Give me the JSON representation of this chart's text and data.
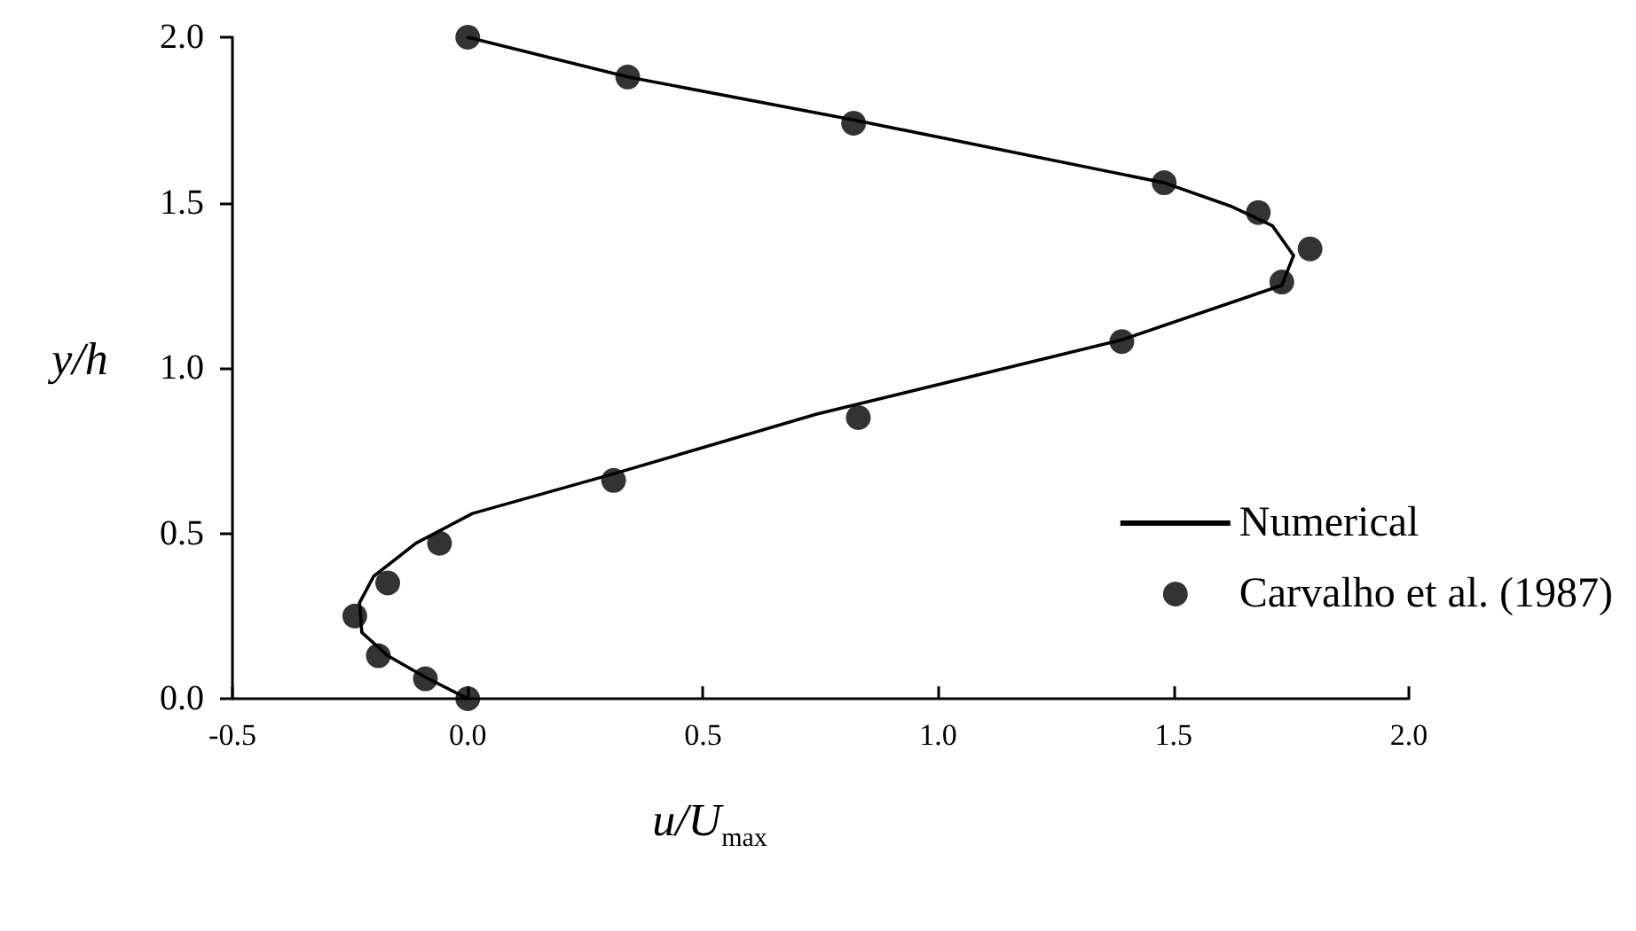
{
  "chart_data": {
    "type": "scatter",
    "xlabel": "u/U$_{max}$",
    "ylabel": "y/h",
    "xlim": [
      -0.5,
      2.0
    ],
    "xticks": [
      {
        "value": -0.5,
        "label": "-0.5"
      },
      {
        "value": 0,
        "label": "0.0"
      },
      {
        "value": 0.5,
        "label": "0.5"
      },
      {
        "value": 1,
        "label": "1.0"
      },
      {
        "value": 1.5,
        "label": "1.5"
      },
      {
        "value": 2,
        "label": "2.0"
      }
    ],
    "ylim": [
      0,
      2.0
    ],
    "yticks": [
      {
        "value": 0,
        "label": "0.0"
      },
      {
        "value": 0.5,
        "label": "0.5"
      },
      {
        "value": 1,
        "label": "1.0"
      },
      {
        "value": 1.5,
        "label": "1.5"
      },
      {
        "value": 2,
        "label": "2.0"
      }
    ],
    "grid": false,
    "legend": "bottom right",
    "series": [
      {
        "name": "Numerical",
        "type": "line",
        "marker": "none",
        "line_style": "solid",
        "color": "#000000",
        "x": [
          0,
          0.34,
          0.82,
          1.48,
          1.62,
          1.71,
          1.755,
          1.73,
          1.39,
          0.74,
          0.31,
          0.01,
          -0.11,
          -0.2,
          -0.23,
          -0.225,
          -0.17,
          -0.09,
          0
        ],
        "values": [
          2.0,
          1.88,
          1.75,
          1.56,
          1.49,
          1.43,
          1.34,
          1.25,
          1.085,
          0.86,
          0.68,
          0.56,
          0.47,
          0.37,
          0.29,
          0.2,
          0.13,
          0.065,
          0
        ]
      },
      {
        "name": "Carvalho et al. (1987)",
        "marker": "circle",
        "color": "#000000",
        "x": [
          0,
          0.34,
          0.82,
          1.48,
          1.68,
          1.79,
          1.73,
          1.39,
          0.83,
          0.31,
          -0.06,
          -0.17,
          -0.24,
          -0.19,
          -0.09,
          0
        ],
        "values": [
          2.0,
          1.88,
          1.74,
          1.56,
          1.47,
          1.36,
          1.26,
          1.08,
          0.85,
          0.66,
          0.47,
          0.35,
          0.25,
          0.13,
          0.06,
          0
        ]
      }
    ]
  }
}
